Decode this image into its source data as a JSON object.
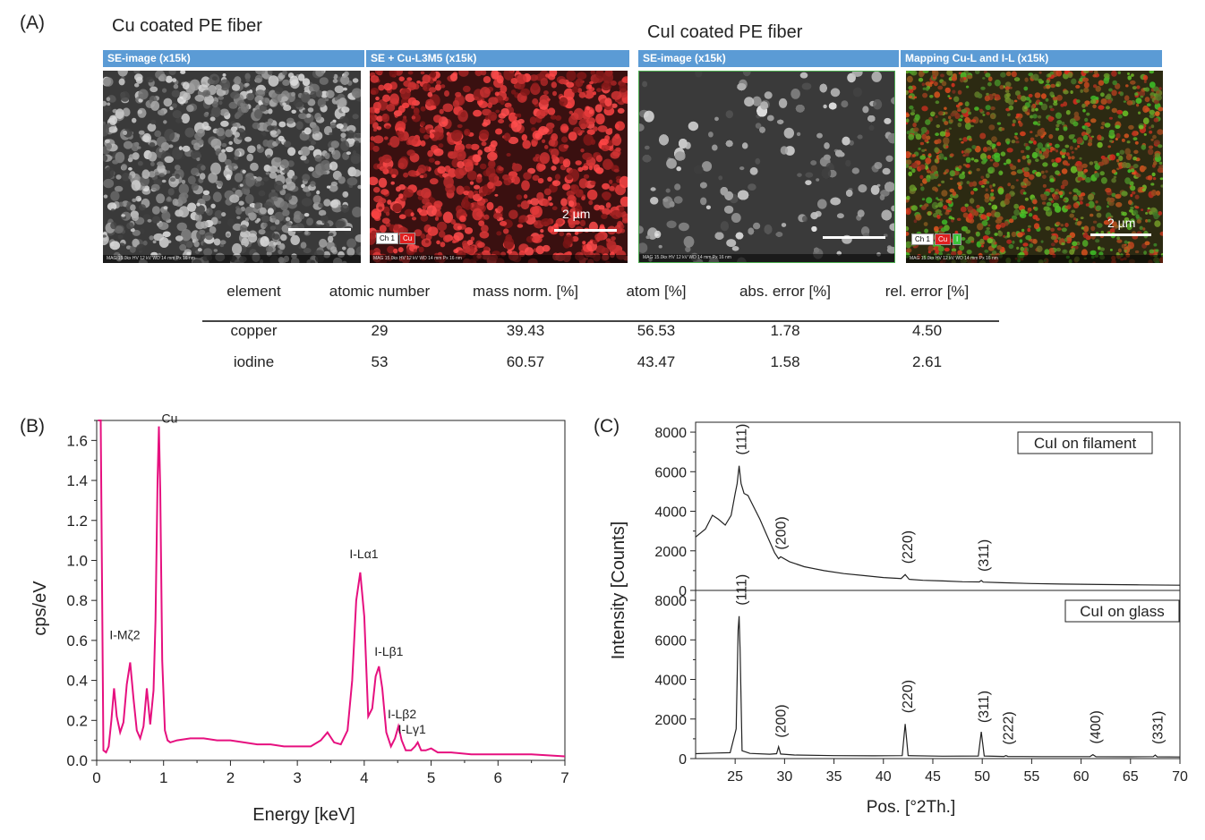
{
  "panels": {
    "a": "(A)",
    "b": "(B)",
    "c": "(C)"
  },
  "sem": {
    "group1_title": "Cu coated PE fiber",
    "group2_title": "CuI coated PE fiber",
    "images": [
      {
        "header": "SE-image (x15k)",
        "scale": "",
        "tags": [],
        "color": "gray"
      },
      {
        "header": "SE + Cu-L3M5 (x15k)",
        "scale": "2 µm",
        "tags": [
          "Ch 1",
          "Cu"
        ],
        "color": "red"
      },
      {
        "header": "SE-image (x15k)",
        "scale": "",
        "tags": [],
        "color": "gray"
      },
      {
        "header": "Mapping Cu-L and I-L (x15k)",
        "scale": "2 µm",
        "tags": [
          "Ch 1",
          "Cu",
          "I"
        ],
        "color": "redgreen"
      }
    ],
    "footer_text": "MAG 15.0kx  HV 12 kV  WD 14 mm  Px 16 nm"
  },
  "table": {
    "headers": [
      "element",
      "atomic number",
      "mass norm.  [%]",
      "atom [%]",
      "abs. error [%]",
      "rel. error [%]"
    ],
    "rows": [
      [
        "copper",
        "29",
        "39.43",
        "56.53",
        "1.78",
        "4.50"
      ],
      [
        "iodine",
        "53",
        "60.57",
        "43.47",
        "1.58",
        "2.61"
      ]
    ]
  },
  "chart_data": [
    {
      "type": "line",
      "panel": "(B)",
      "xlabel": "Energy  [keV]",
      "ylabel": "cps/eV",
      "xlim": [
        0,
        7
      ],
      "ylim": [
        0,
        1.7
      ],
      "xticks": [
        0,
        1,
        2,
        3,
        4,
        5,
        6,
        7
      ],
      "yticks": [
        0.0,
        0.2,
        0.4,
        0.6,
        0.8,
        1.0,
        1.2,
        1.4,
        1.6
      ],
      "color": "#e6107f",
      "peaks": [
        {
          "label": "I-Mζ2",
          "x": 0.5,
          "y": 0.49
        },
        {
          "label": "Cu",
          "x": 0.93,
          "y": 1.67
        },
        {
          "label": "I-Lα1",
          "x": 3.94,
          "y": 0.94
        },
        {
          "label": "I-Lβ1",
          "x": 4.22,
          "y": 0.47
        },
        {
          "label": "I-Lβ2",
          "x": 4.51,
          "y": 0.17
        },
        {
          "label": "I-Lγ1",
          "x": 4.8,
          "y": 0.09
        }
      ],
      "series": [
        {
          "x": [
            0.02,
            0.06,
            0.1,
            0.14,
            0.18,
            0.22,
            0.26,
            0.3,
            0.35,
            0.4,
            0.45,
            0.5,
            0.55,
            0.6,
            0.65,
            0.7,
            0.75,
            0.8,
            0.85,
            0.88,
            0.91,
            0.93,
            0.95,
            0.98,
            1.02,
            1.06,
            1.1,
            1.2,
            1.4,
            1.6,
            1.8,
            2.0,
            2.2,
            2.4,
            2.6,
            2.8,
            3.0,
            3.2,
            3.35,
            3.45,
            3.55,
            3.65,
            3.75,
            3.82,
            3.88,
            3.94,
            4.0,
            4.06,
            4.12,
            4.17,
            4.22,
            4.27,
            4.33,
            4.4,
            4.46,
            4.51,
            4.56,
            4.62,
            4.7,
            4.76,
            4.8,
            4.85,
            4.92,
            5.0,
            5.1,
            5.3,
            5.6,
            6.0,
            6.5,
            7.0
          ],
          "y": [
            1.75,
            1.75,
            0.05,
            0.04,
            0.07,
            0.2,
            0.36,
            0.22,
            0.14,
            0.19,
            0.38,
            0.49,
            0.31,
            0.15,
            0.11,
            0.17,
            0.36,
            0.18,
            0.35,
            0.7,
            1.4,
            1.67,
            1.35,
            0.5,
            0.15,
            0.1,
            0.09,
            0.1,
            0.11,
            0.11,
            0.1,
            0.1,
            0.09,
            0.08,
            0.08,
            0.07,
            0.07,
            0.07,
            0.1,
            0.14,
            0.09,
            0.08,
            0.15,
            0.4,
            0.8,
            0.94,
            0.72,
            0.22,
            0.26,
            0.42,
            0.47,
            0.36,
            0.14,
            0.07,
            0.11,
            0.17,
            0.1,
            0.05,
            0.05,
            0.07,
            0.09,
            0.05,
            0.05,
            0.06,
            0.04,
            0.04,
            0.03,
            0.03,
            0.03,
            0.02
          ]
        }
      ]
    },
    {
      "type": "line",
      "panel": "(C)",
      "xlabel": "Pos. [°2Th.]",
      "ylabel": "Intensity [Counts]",
      "xlim": [
        21,
        70
      ],
      "ylim": [
        0,
        8500
      ],
      "xticks": [
        25,
        30,
        35,
        40,
        45,
        50,
        55,
        60,
        65,
        70
      ],
      "yticks": [
        0,
        2000,
        4000,
        6000,
        8000
      ],
      "color": "#222222",
      "subplots": [
        {
          "legend": "CuI on filament",
          "peaks": [
            {
              "label": "(111)",
              "x": 25.4,
              "y": 6300
            },
            {
              "label": "(200)",
              "x": 29.4,
              "y": 1600
            },
            {
              "label": "(220)",
              "x": 42.2,
              "y": 800
            },
            {
              "label": "(311)",
              "x": 49.9,
              "y": 500
            }
          ],
          "x": [
            21,
            22,
            22.7,
            23.3,
            24,
            24.6,
            25.0,
            25.2,
            25.4,
            25.6,
            25.9,
            26.3,
            26.8,
            27.5,
            28.2,
            29.0,
            29.4,
            29.6,
            30.5,
            32,
            34,
            36,
            38,
            40,
            41.8,
            42.2,
            42.6,
            44,
            46,
            48,
            49.7,
            49.9,
            50.1,
            52,
            55,
            58,
            62,
            66,
            70
          ],
          "y": [
            2700,
            3100,
            3800,
            3600,
            3300,
            3800,
            4900,
            5400,
            6300,
            5400,
            4900,
            4800,
            4300,
            3600,
            2800,
            1900,
            1600,
            1700,
            1450,
            1200,
            1000,
            850,
            750,
            650,
            600,
            800,
            560,
            510,
            480,
            440,
            430,
            500,
            420,
            390,
            350,
            320,
            300,
            280,
            260
          ]
        },
        {
          "legend": "CuI on glass",
          "peaks": [
            {
              "label": "(111)",
              "x": 25.4,
              "y": 7200
            },
            {
              "label": "(200)",
              "x": 29.4,
              "y": 600
            },
            {
              "label": "(220)",
              "x": 42.2,
              "y": 1750
            },
            {
              "label": "(311)",
              "x": 49.9,
              "y": 1350
            },
            {
              "label": "(222)",
              "x": 52.4,
              "y": 150
            },
            {
              "label": "(400)",
              "x": 61.2,
              "y": 200
            },
            {
              "label": "(331)",
              "x": 67.5,
              "y": 180
            }
          ],
          "x": [
            21,
            23,
            24.5,
            25.1,
            25.3,
            25.4,
            25.5,
            25.7,
            26.5,
            28.5,
            29.2,
            29.4,
            29.6,
            31,
            35,
            39,
            41.9,
            42.2,
            42.5,
            46,
            49.6,
            49.9,
            50.2,
            52.2,
            52.4,
            52.6,
            56,
            60.9,
            61.2,
            61.5,
            65,
            67.3,
            67.5,
            67.7,
            70
          ],
          "y": [
            250,
            280,
            300,
            1500,
            6500,
            7200,
            5500,
            400,
            260,
            220,
            250,
            600,
            230,
            180,
            150,
            140,
            150,
            1750,
            150,
            120,
            130,
            1350,
            130,
            110,
            150,
            110,
            100,
            100,
            200,
            95,
            90,
            100,
            180,
            90,
            80
          ]
        }
      ]
    }
  ]
}
